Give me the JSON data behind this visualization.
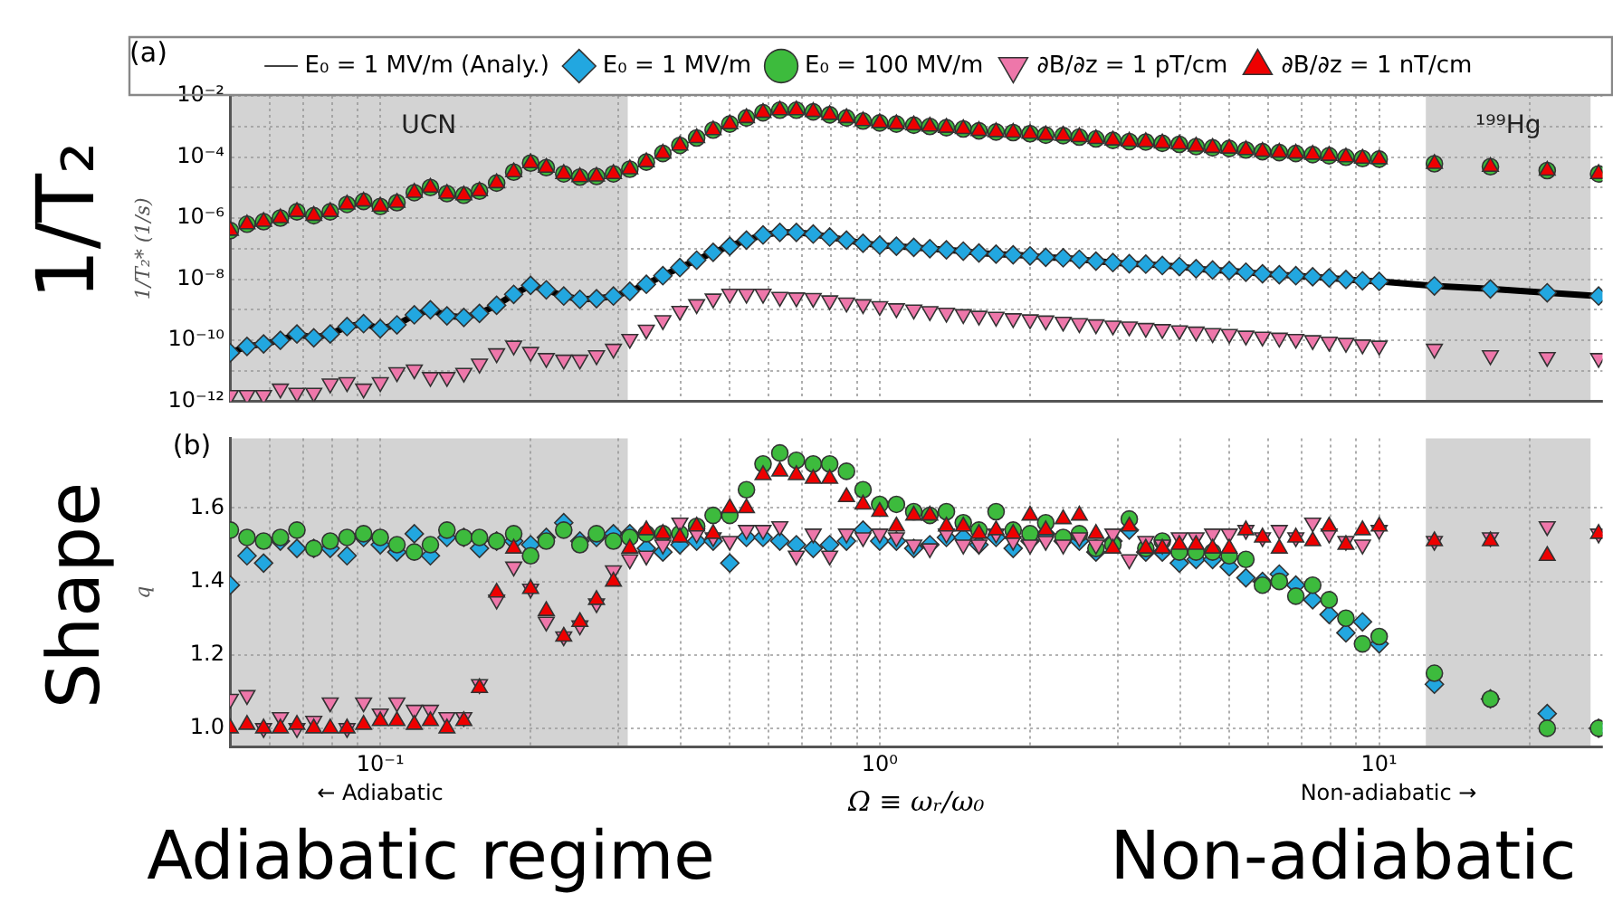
{
  "chart_data": [
    {
      "type": "scatter",
      "ylabel": "1/T₂* (1/s)",
      "annotations": [
        "(a)",
        "1/T₂"
      ],
      "log": "xy",
      "grid": true,
      "legend": "top",
      "tick_labels": "y",
      "x": [
        0.0501,
        0.0541,
        0.0584,
        0.0631,
        0.0681,
        0.0736,
        0.0794,
        0.0858,
        0.0926,
        0.1,
        0.108,
        0.117,
        0.126,
        0.136,
        0.147,
        0.158,
        0.171,
        0.185,
        0.2,
        0.215,
        0.233,
        0.251,
        0.271,
        0.293,
        0.316,
        0.341,
        0.368,
        0.398,
        0.43,
        0.464,
        0.501,
        0.541,
        0.584,
        0.631,
        0.681,
        0.736,
        0.794,
        0.858,
        0.926,
        1,
        1.08,
        1.17,
        1.26,
        1.36,
        1.47,
        1.58,
        1.71,
        1.85,
        2,
        2.15,
        2.33,
        2.51,
        2.71,
        2.93,
        3.16,
        3.41,
        3.68,
        3.98,
        4.3,
        4.64,
        5.01,
        5.41,
        5.84,
        6.31,
        6.81,
        7.36,
        7.94,
        8.58,
        9.26,
        10,
        12.9,
        16.7,
        21.7,
        27.5
      ],
      "xlim": [
        0.05,
        28
      ],
      "xticks": [
        {
          "value": 0.06,
          "label": null
        },
        {
          "value": 0.07,
          "label": null
        },
        {
          "value": 0.08,
          "label": null
        },
        {
          "value": 0.09,
          "label": null
        },
        {
          "value": 0.1,
          "label": null
        },
        {
          "value": 0.2,
          "label": null
        },
        {
          "value": 0.3,
          "label": null
        },
        {
          "value": 0.4,
          "label": null
        },
        {
          "value": 0.5,
          "label": null
        },
        {
          "value": 0.6,
          "label": null
        },
        {
          "value": 0.7,
          "label": null
        },
        {
          "value": 0.8,
          "label": null
        },
        {
          "value": 0.9,
          "label": null
        },
        {
          "value": 1,
          "label": null
        },
        {
          "value": 2,
          "label": null
        },
        {
          "value": 3,
          "label": null
        },
        {
          "value": 4,
          "label": null
        },
        {
          "value": 5,
          "label": null
        },
        {
          "value": 6,
          "label": null
        },
        {
          "value": 7,
          "label": null
        },
        {
          "value": 8,
          "label": null
        },
        {
          "value": 9,
          "label": null
        },
        {
          "value": 10,
          "label": null
        },
        {
          "value": 20,
          "label": null
        }
      ],
      "ylim": [
        1e-12,
        0.01
      ],
      "yticks": [
        {
          "value": 1e-12,
          "label": "10⁻¹²"
        },
        {
          "value": 1e-11,
          "label": null
        },
        {
          "value": 1e-10,
          "label": "10⁻¹⁰"
        },
        {
          "value": 1e-09,
          "label": null
        },
        {
          "value": 1e-08,
          "label": "10⁻⁸"
        },
        {
          "value": 1e-07,
          "label": null
        },
        {
          "value": 1e-06,
          "label": "10⁻⁶"
        },
        {
          "value": 1e-05,
          "label": null
        },
        {
          "value": 0.0001,
          "label": "10⁻⁴"
        },
        {
          "value": 0.001,
          "label": null
        },
        {
          "value": 0.01,
          "label": "10⁻²"
        }
      ],
      "bands": [
        {
          "axis": "x",
          "from": 0.05,
          "to": 0.313,
          "label": "UCN",
          "color": "#d3d3d3"
        },
        {
          "axis": "x",
          "from": 12.4,
          "to": 26.5,
          "label": "¹⁹⁹Hg",
          "color": "#d3d3d3"
        }
      ],
      "series": [
        {
          "name": "E₀ = 1 MV/m (Analy.)",
          "type": "line",
          "marker": "none",
          "color": "#000000",
          "values": [
            3.9e-11,
            6.3e-11,
            7.6e-11,
            1e-10,
            1.6e-10,
            1.2e-10,
            1.6e-10,
            2.8e-10,
            3.5e-10,
            2.4e-10,
            3.2e-10,
            6.8e-10,
            1e-09,
            6.3e-10,
            5.6e-10,
            7.6e-10,
            1.4e-09,
            3.2e-09,
            6.3e-09,
            4.5e-09,
            2.8e-09,
            2.2e-09,
            2.3e-09,
            2.8e-09,
            4e-09,
            6.8e-09,
            1.3e-08,
            2.4e-08,
            4.2e-08,
            7.6e-08,
            1.2e-07,
            1.9e-07,
            2.8e-07,
            3.4e-07,
            3.4e-07,
            3e-07,
            2.4e-07,
            1.9e-07,
            1.5e-07,
            1.3e-07,
            1.2e-07,
            1.1e-07,
            1e-07,
            9.1e-08,
            8.3e-08,
            7.2e-08,
            6.6e-08,
            6.3e-08,
            5.8e-08,
            5.2e-08,
            5e-08,
            4.5e-08,
            3.9e-08,
            3.5e-08,
            3.2e-08,
            3.1e-08,
            2.8e-08,
            2.6e-08,
            2.2e-08,
            2e-08,
            1.9e-08,
            1.7e-08,
            1.5e-08,
            1.4e-08,
            1.3e-08,
            1.2e-08,
            1.1e-08,
            9.8e-09,
            8.9e-09,
            8.5e-09,
            6e-09,
            4.8e-09,
            3.6e-09,
            2.8e-09
          ]
        },
        {
          "name": "E₀ = 1 MV/m",
          "marker": "diamond",
          "color": "#22a7e0",
          "values": [
            3.9e-11,
            6.3e-11,
            7.6e-11,
            1e-10,
            1.6e-10,
            1.2e-10,
            1.6e-10,
            2.8e-10,
            3.5e-10,
            2.4e-10,
            3.2e-10,
            6.8e-10,
            1e-09,
            6.3e-10,
            5.6e-10,
            7.6e-10,
            1.4e-09,
            3.2e-09,
            6.3e-09,
            4.5e-09,
            2.8e-09,
            2.2e-09,
            2.3e-09,
            2.8e-09,
            4e-09,
            6.8e-09,
            1.3e-08,
            2.4e-08,
            4.2e-08,
            7.6e-08,
            1.2e-07,
            1.9e-07,
            2.8e-07,
            3.4e-07,
            3.4e-07,
            3e-07,
            2.4e-07,
            1.9e-07,
            1.5e-07,
            1.3e-07,
            1.2e-07,
            1.1e-07,
            1e-07,
            9.1e-08,
            8.3e-08,
            7.2e-08,
            6.6e-08,
            6.3e-08,
            5.8e-08,
            5.2e-08,
            5e-08,
            4.5e-08,
            3.9e-08,
            3.5e-08,
            3.2e-08,
            3.1e-08,
            2.8e-08,
            2.6e-08,
            2.2e-08,
            2e-08,
            1.9e-08,
            1.7e-08,
            1.5e-08,
            1.4e-08,
            1.3e-08,
            1.2e-08,
            1.1e-08,
            9.8e-09,
            8.9e-09,
            8.5e-09,
            6e-09,
            4.8e-09,
            3.6e-09,
            2.8e-09
          ]
        },
        {
          "name": "E₀ = 100 MV/m",
          "marker": "circle",
          "color": "#3dbb3d",
          "values": [
            3.9e-07,
            6.3e-07,
            7.6e-07,
            1e-06,
            1.6e-06,
            1.2e-06,
            1.6e-06,
            2.8e-06,
            3.5e-06,
            2.4e-06,
            3.2e-06,
            6.8e-06,
            1e-05,
            6.3e-06,
            5.6e-06,
            7.6e-06,
            1.4e-05,
            3.2e-05,
            6.3e-05,
            4.5e-05,
            2.8e-05,
            2.2e-05,
            2.3e-05,
            2.8e-05,
            4e-05,
            6.8e-05,
            0.00013,
            0.00024,
            0.00042,
            0.00076,
            0.0012,
            0.0019,
            0.0028,
            0.0034,
            0.0034,
            0.003,
            0.0024,
            0.0019,
            0.0015,
            0.0013,
            0.0012,
            0.0011,
            0.001,
            0.00091,
            0.00083,
            0.00072,
            0.00066,
            0.00063,
            0.00058,
            0.00052,
            0.0005,
            0.00045,
            0.00039,
            0.00035,
            0.00032,
            0.00031,
            0.00028,
            0.00026,
            0.00022,
            0.0002,
            0.00019,
            0.00017,
            0.00015,
            0.00014,
            0.00013,
            0.00012,
            0.00011,
            9.8e-05,
            8.9e-05,
            8.5e-05,
            6e-05,
            4.8e-05,
            3.6e-05,
            2.8e-05
          ]
        },
        {
          "name": "∂B/∂z = 1 pT/cm",
          "marker": "triangle-down",
          "color": "#ee77aa",
          "values": [
            1.6e-12,
            1.6e-12,
            1.6e-12,
            2.6e-12,
            1.9e-12,
            1.9e-12,
            3.8e-12,
            4.2e-12,
            2.6e-12,
            4.2e-12,
            8.9e-12,
            1.1e-11,
            6.2e-12,
            6.2e-12,
            8.5e-12,
            1.7e-11,
            3.7e-11,
            6.6e-11,
            4.1e-11,
            2.6e-11,
            2.3e-11,
            2.3e-11,
            3.2e-11,
            5.2e-11,
            1.1e-10,
            2.2e-10,
            4.5e-10,
            9.1e-10,
            1.5e-09,
            2.3e-09,
            3.3e-09,
            3.3e-09,
            3.3e-09,
            2.6e-09,
            2.5e-09,
            2.4e-09,
            2e-09,
            1.7e-09,
            1.5e-09,
            1.3e-09,
            1.1e-09,
            1e-09,
            8.9e-10,
            7.9e-10,
            7.1e-10,
            6.3e-10,
            5.8e-10,
            5.2e-10,
            4.8e-10,
            4.4e-10,
            4e-10,
            3.6e-10,
            3.3e-10,
            3e-10,
            2.8e-10,
            2.5e-10,
            2.3e-10,
            2.1e-10,
            1.9e-10,
            1.7e-10,
            1.6e-10,
            1.4e-10,
            1.3e-10,
            1.2e-10,
            1.1e-10,
            1e-10,
            8.9e-11,
            8.1e-11,
            7.2e-11,
            6.6e-11,
            5.2e-11,
            3.2e-11,
            2.8e-11,
            2.6e-11
          ]
        },
        {
          "name": "∂B/∂z = 1 nT/cm",
          "marker": "triangle",
          "color": "#ee0000",
          "values": [
            3.9e-07,
            6.3e-07,
            7.6e-07,
            1e-06,
            1.6e-06,
            1.2e-06,
            1.6e-06,
            2.8e-06,
            3.5e-06,
            2.4e-06,
            3.2e-06,
            6.8e-06,
            1e-05,
            6.3e-06,
            5.6e-06,
            7.6e-06,
            1.4e-05,
            3.2e-05,
            6.3e-05,
            4.5e-05,
            2.8e-05,
            2.2e-05,
            2.3e-05,
            2.8e-05,
            4e-05,
            6.8e-05,
            0.00013,
            0.00024,
            0.00042,
            0.00076,
            0.0012,
            0.0019,
            0.0028,
            0.0034,
            0.0034,
            0.003,
            0.0024,
            0.0019,
            0.0015,
            0.0013,
            0.0012,
            0.0011,
            0.001,
            0.00091,
            0.00083,
            0.00072,
            0.00066,
            0.00063,
            0.00058,
            0.00052,
            0.0005,
            0.00045,
            0.00039,
            0.00035,
            0.00032,
            0.00031,
            0.00028,
            0.00026,
            0.00022,
            0.0002,
            0.00019,
            0.00017,
            0.00015,
            0.00014,
            0.00013,
            0.00012,
            0.00011,
            9.8e-05,
            8.9e-05,
            8.5e-05,
            6e-05,
            4.8e-05,
            3.6e-05,
            2.8e-05
          ]
        }
      ]
    },
    {
      "type": "scatter",
      "xlabel": "Ω ≡ ωᵣ/ω₀",
      "ylabel": "q",
      "annotations": [
        "(b)",
        "Shape",
        "← Adiabatic",
        "Non-adiabatic →",
        "Adiabatic regime",
        "Non-adiabatic"
      ],
      "log": "x",
      "grid": true,
      "x": [
        0.0501,
        0.0541,
        0.0584,
        0.0631,
        0.0681,
        0.0736,
        0.0794,
        0.0858,
        0.0926,
        0.1,
        0.108,
        0.117,
        0.126,
        0.136,
        0.147,
        0.158,
        0.171,
        0.185,
        0.2,
        0.215,
        0.233,
        0.251,
        0.271,
        0.293,
        0.316,
        0.341,
        0.368,
        0.398,
        0.43,
        0.464,
        0.501,
        0.541,
        0.584,
        0.631,
        0.681,
        0.736,
        0.794,
        0.858,
        0.926,
        1,
        1.08,
        1.17,
        1.26,
        1.36,
        1.47,
        1.58,
        1.71,
        1.85,
        2,
        2.15,
        2.33,
        2.51,
        2.71,
        2.93,
        3.16,
        3.41,
        3.68,
        3.98,
        4.3,
        4.64,
        5.01,
        5.41,
        5.84,
        6.31,
        6.81,
        7.36,
        7.94,
        8.58,
        9.26,
        10,
        12.9,
        16.7,
        21.7,
        27.5
      ],
      "xlim": [
        0.05,
        28
      ],
      "xticks": [
        {
          "value": 0.06,
          "label": null
        },
        {
          "value": 0.07,
          "label": null
        },
        {
          "value": 0.08,
          "label": null
        },
        {
          "value": 0.09,
          "label": null
        },
        {
          "value": 0.1,
          "label": "10⁻¹"
        },
        {
          "value": 0.2,
          "label": null
        },
        {
          "value": 0.3,
          "label": null
        },
        {
          "value": 0.4,
          "label": null
        },
        {
          "value": 0.5,
          "label": null
        },
        {
          "value": 0.6,
          "label": null
        },
        {
          "value": 0.7,
          "label": null
        },
        {
          "value": 0.8,
          "label": null
        },
        {
          "value": 0.9,
          "label": null
        },
        {
          "value": 1,
          "label": "10⁰"
        },
        {
          "value": 2,
          "label": null
        },
        {
          "value": 3,
          "label": null
        },
        {
          "value": 4,
          "label": null
        },
        {
          "value": 5,
          "label": null
        },
        {
          "value": 6,
          "label": null
        },
        {
          "value": 7,
          "label": null
        },
        {
          "value": 8,
          "label": null
        },
        {
          "value": 9,
          "label": null
        },
        {
          "value": 10,
          "label": "10¹"
        },
        {
          "value": 20,
          "label": null
        }
      ],
      "ylim": [
        0.95,
        1.79
      ],
      "yticks": [
        {
          "value": 1,
          "label": "1.0"
        },
        {
          "value": 1.2,
          "label": "1.2"
        },
        {
          "value": 1.4,
          "label": "1.4"
        },
        {
          "value": 1.6,
          "label": "1.6"
        }
      ],
      "bands": [
        {
          "axis": "x",
          "from": 0.05,
          "to": 0.313,
          "color": "#d3d3d3"
        },
        {
          "axis": "x",
          "from": 12.4,
          "to": 26.5,
          "color": "#d3d3d3"
        }
      ],
      "series": [
        {
          "marker": "diamond",
          "color": "#22a7e0",
          "values": [
            1.39,
            1.47,
            1.45,
            1.51,
            1.49,
            1.49,
            1.49,
            1.47,
            1.52,
            1.5,
            1.48,
            1.53,
            1.47,
            1.52,
            1.52,
            1.49,
            1.51,
            1.51,
            1.5,
            1.52,
            1.56,
            1.51,
            1.52,
            1.53,
            1.53,
            1.49,
            1.48,
            1.5,
            1.51,
            1.51,
            1.45,
            1.52,
            1.52,
            1.51,
            1.5,
            1.49,
            1.5,
            1.51,
            1.54,
            1.51,
            1.51,
            1.49,
            1.5,
            1.52,
            1.52,
            1.5,
            1.52,
            1.49,
            1.51,
            1.53,
            1.51,
            1.51,
            1.48,
            1.51,
            1.54,
            1.48,
            1.48,
            1.45,
            1.46,
            1.46,
            1.44,
            1.41,
            1.4,
            1.42,
            1.39,
            1.35,
            1.31,
            1.26,
            1.29,
            1.23,
            1.12,
            1.08,
            1.04,
            1.0
          ]
        },
        {
          "marker": "circle",
          "color": "#3dbb3d",
          "values": [
            1.54,
            1.52,
            1.51,
            1.52,
            1.54,
            1.49,
            1.51,
            1.52,
            1.53,
            1.52,
            1.5,
            1.48,
            1.5,
            1.54,
            1.52,
            1.52,
            1.51,
            1.53,
            1.47,
            1.51,
            1.54,
            1.5,
            1.53,
            1.51,
            1.52,
            1.53,
            1.53,
            1.53,
            1.55,
            1.58,
            1.58,
            1.65,
            1.72,
            1.75,
            1.73,
            1.72,
            1.72,
            1.7,
            1.65,
            1.61,
            1.61,
            1.59,
            1.58,
            1.59,
            1.56,
            1.54,
            1.59,
            1.54,
            1.53,
            1.56,
            1.52,
            1.53,
            1.49,
            1.5,
            1.57,
            1.49,
            1.51,
            1.48,
            1.48,
            1.48,
            1.47,
            1.46,
            1.39,
            1.4,
            1.36,
            1.39,
            1.35,
            1.3,
            1.23,
            1.25,
            1.15,
            1.08,
            1.0,
            1.0
          ]
        },
        {
          "marker": "triangle-down",
          "color": "#ee77aa",
          "values": [
            1.08,
            1.09,
            1.0,
            1.03,
            1.0,
            1.02,
            1.07,
            1.0,
            1.07,
            1.04,
            1.07,
            1.05,
            1.05,
            1.03,
            1.03,
            1.12,
            1.35,
            1.44,
            1.38,
            1.29,
            1.25,
            1.28,
            1.34,
            1.43,
            1.46,
            1.47,
            1.5,
            1.56,
            1.53,
            1.52,
            1.51,
            1.54,
            1.54,
            1.55,
            1.47,
            1.53,
            1.47,
            1.53,
            1.52,
            1.53,
            1.52,
            1.5,
            1.49,
            1.53,
            1.5,
            1.5,
            1.53,
            1.51,
            1.5,
            1.51,
            1.5,
            1.52,
            1.5,
            1.53,
            1.46,
            1.51,
            1.5,
            1.52,
            1.52,
            1.53,
            1.53,
            1.54,
            1.52,
            1.54,
            1.52,
            1.56,
            1.53,
            1.51,
            1.5,
            1.54,
            1.51,
            1.52,
            1.55,
            1.53
          ]
        },
        {
          "marker": "triangle",
          "color": "#ee0000",
          "values": [
            1.0,
            1.01,
            1.0,
            1.0,
            1.01,
            1.0,
            1.0,
            1.0,
            1.01,
            1.02,
            1.02,
            1.01,
            1.02,
            1.0,
            1.02,
            1.11,
            1.37,
            1.49,
            1.38,
            1.32,
            1.25,
            1.29,
            1.35,
            1.4,
            1.49,
            1.54,
            1.53,
            1.52,
            1.55,
            1.53,
            1.6,
            1.6,
            1.69,
            1.7,
            1.69,
            1.68,
            1.68,
            1.63,
            1.61,
            1.59,
            1.55,
            1.58,
            1.58,
            1.55,
            1.55,
            1.53,
            1.54,
            1.53,
            1.58,
            1.54,
            1.57,
            1.58,
            1.53,
            1.49,
            1.55,
            1.49,
            1.49,
            1.5,
            1.5,
            1.49,
            1.49,
            1.54,
            1.52,
            1.49,
            1.52,
            1.51,
            1.55,
            1.5,
            1.54,
            1.55,
            1.51,
            1.51,
            1.47,
            1.53
          ]
        }
      ]
    }
  ]
}
